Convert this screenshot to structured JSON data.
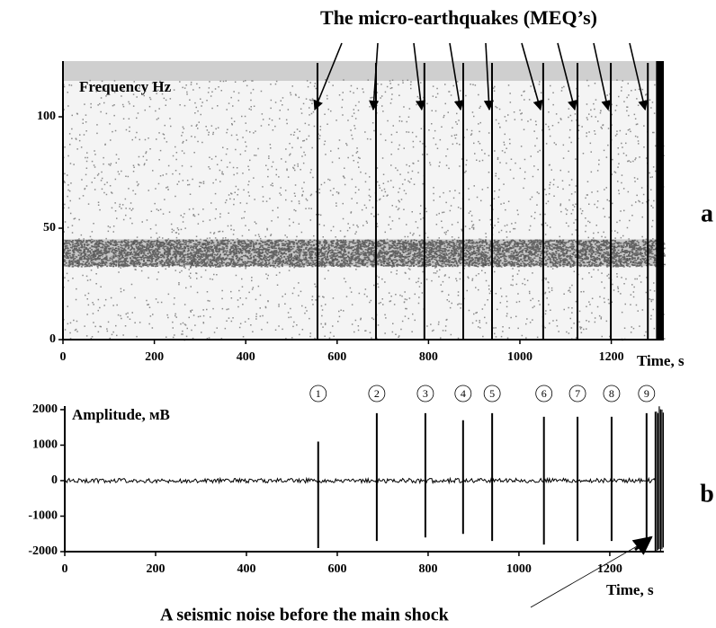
{
  "chart_data": [
    {
      "type": "spectrogram",
      "title": "The micro-earthquakes (MEQ’s)",
      "ylabel": "Frequency Hz",
      "xlabel": "Time, s",
      "panel": "a",
      "xlim": [
        0,
        1315
      ],
      "ylim": [
        0,
        125
      ],
      "xticks": [
        0,
        200,
        400,
        600,
        800,
        1000,
        1200
      ],
      "yticks": [
        0,
        50,
        100
      ],
      "event_x": [
        557,
        685,
        791,
        876,
        939,
        1051,
        1126,
        1199,
        1280
      ],
      "dense_band": [
        33,
        45
      ],
      "main_shock_x": [
        1298,
        1315
      ]
    },
    {
      "type": "seismogram",
      "ylabel": "Amplitude, мВ",
      "xlabel": "Time, s",
      "panel": "b",
      "annotation": "A seismic noise before the main shock",
      "xlim": [
        0,
        1319
      ],
      "ylim": [
        -2000,
        2100
      ],
      "xticks": [
        0,
        200,
        400,
        600,
        800,
        1000,
        1200
      ],
      "yticks": [
        -2000,
        -1000,
        0,
        1000,
        2000
      ],
      "event_labels": [
        "1",
        "2",
        "3",
        "4",
        "5",
        "6",
        "7",
        "8",
        "9"
      ],
      "event_x": [
        558,
        687,
        794,
        877,
        941,
        1055,
        1129,
        1204,
        1281
      ],
      "event_max": [
        1100,
        1900,
        1900,
        1700,
        1900,
        1800,
        1800,
        1800,
        1900
      ],
      "event_min": [
        -1900,
        -1700,
        -1600,
        -1500,
        -1700,
        -1800,
        -1700,
        -1700,
        -1800
      ],
      "main_shock_x": [
        1300,
        1319
      ]
    }
  ]
}
